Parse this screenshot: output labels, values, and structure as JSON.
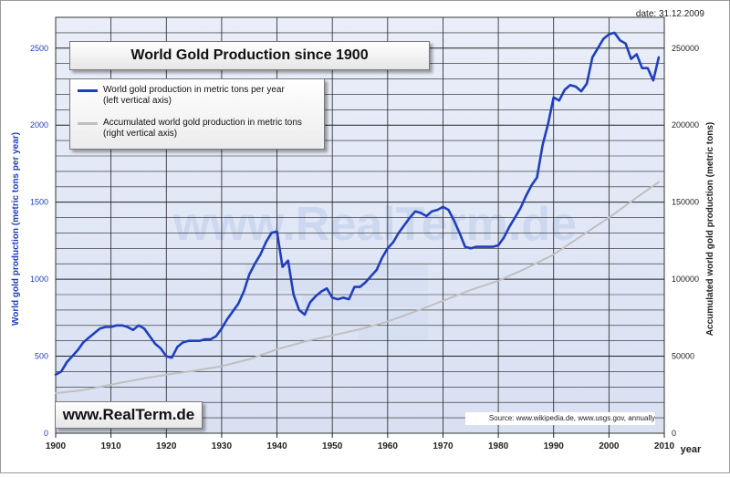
{
  "date_label": "date: 31.12.2009",
  "watermark": "www.RealTerm.de",
  "brand_label": "www.RealTerm.de",
  "source_label": "Source: www.wikipedia.de, www.usgs.gov, annually",
  "chart_data": {
    "type": "line",
    "title": "World Gold Production since 1900",
    "xlabel": "year",
    "ylabel_left": "World gold production (metric tons per year)",
    "ylabel_right": "Accumulated world gold production (metric tons)",
    "xlim": [
      1900,
      2010
    ],
    "ylim_left": [
      0,
      2700
    ],
    "ylim_right": [
      0,
      270000
    ],
    "x_ticks": [
      1900,
      1910,
      1920,
      1930,
      1940,
      1950,
      1960,
      1970,
      1980,
      1990,
      2000,
      2010
    ],
    "y_ticks_left": [
      0,
      500,
      1000,
      1500,
      2000,
      2500
    ],
    "y_ticks_right": [
      0,
      50000,
      100000,
      150000,
      200000,
      250000
    ],
    "grid": true,
    "legend_position": "top-left",
    "series": [
      {
        "name": "World gold production in metric tons per year",
        "name_note": "(left vertical axis)",
        "axis": "left",
        "color": "#1f3fbf",
        "x": [
          1900,
          1901,
          1902,
          1903,
          1904,
          1905,
          1906,
          1907,
          1908,
          1909,
          1910,
          1911,
          1912,
          1913,
          1914,
          1915,
          1916,
          1917,
          1918,
          1919,
          1920,
          1921,
          1922,
          1923,
          1924,
          1925,
          1926,
          1927,
          1928,
          1929,
          1930,
          1931,
          1932,
          1933,
          1934,
          1935,
          1936,
          1937,
          1938,
          1939,
          1940,
          1941,
          1942,
          1943,
          1944,
          1945,
          1946,
          1947,
          1948,
          1949,
          1950,
          1951,
          1952,
          1953,
          1954,
          1955,
          1956,
          1957,
          1958,
          1959,
          1960,
          1961,
          1962,
          1963,
          1964,
          1965,
          1966,
          1967,
          1968,
          1969,
          1970,
          1971,
          1972,
          1973,
          1974,
          1975,
          1976,
          1977,
          1978,
          1979,
          1980,
          1981,
          1982,
          1983,
          1984,
          1985,
          1986,
          1987,
          1988,
          1989,
          1990,
          1991,
          1992,
          1993,
          1994,
          1995,
          1996,
          1997,
          1998,
          1999,
          2000,
          2001,
          2002,
          2003,
          2004,
          2005,
          2006,
          2007,
          2008,
          2009
        ],
        "values": [
          380,
          400,
          460,
          500,
          540,
          590,
          620,
          650,
          680,
          690,
          690,
          700,
          700,
          690,
          670,
          700,
          680,
          630,
          580,
          550,
          500,
          490,
          560,
          590,
          600,
          600,
          600,
          610,
          610,
          630,
          680,
          740,
          790,
          840,
          920,
          1030,
          1100,
          1160,
          1240,
          1300,
          1310,
          1080,
          1120,
          900,
          800,
          770,
          850,
          890,
          920,
          940,
          880,
          870,
          880,
          870,
          950,
          950,
          980,
          1020,
          1060,
          1140,
          1200,
          1240,
          1300,
          1350,
          1400,
          1440,
          1430,
          1410,
          1440,
          1450,
          1470,
          1450,
          1380,
          1300,
          1210,
          1200,
          1210,
          1210,
          1210,
          1210,
          1220,
          1270,
          1340,
          1400,
          1460,
          1540,
          1610,
          1660,
          1870,
          2010,
          2180,
          2160,
          2230,
          2260,
          2250,
          2220,
          2270,
          2440,
          2500,
          2560,
          2590,
          2600,
          2550,
          2530,
          2430,
          2460,
          2370,
          2370,
          2290,
          2440
        ]
      },
      {
        "name": "Accumulated world gold production in metric tons",
        "name_note": "(right vertical axis)",
        "axis": "right",
        "color": "#c0c0c0",
        "x": [
          1900,
          1905,
          1910,
          1915,
          1920,
          1925,
          1930,
          1935,
          1940,
          1945,
          1950,
          1955,
          1960,
          1965,
          1970,
          1975,
          1980,
          1985,
          1990,
          1995,
          2000,
          2005,
          2009
        ],
        "values": [
          26000,
          28000,
          31500,
          35000,
          38000,
          40500,
          43500,
          48000,
          54500,
          59500,
          63500,
          67500,
          72500,
          79000,
          86000,
          93000,
          99000,
          107000,
          116000,
          128000,
          140000,
          153000,
          163000
        ]
      }
    ]
  }
}
